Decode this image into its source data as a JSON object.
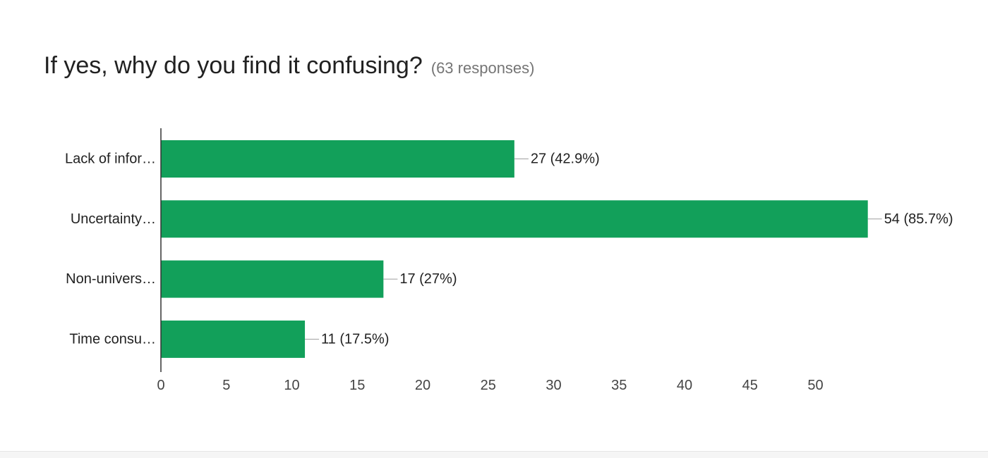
{
  "header": {
    "title": "If yes, why do you find it confusing?",
    "subtitle": "(63 responses)"
  },
  "colors": {
    "bar": "#12a05a",
    "text": "#212121",
    "muted": "#757575",
    "axis": "#333333",
    "leader": "#9e9e9e"
  },
  "chart_data": {
    "type": "bar",
    "orientation": "horizontal",
    "title": "If yes, why do you find it confusing?",
    "subtitle": "(63 responses)",
    "categories": [
      "Lack of infor…",
      "Uncertainty…",
      "Non-univers…",
      "Time consu…"
    ],
    "values": [
      27,
      54,
      17,
      11
    ],
    "data_labels": [
      "27 (42.9%)",
      "54 (85.7%)",
      "17 (27%)",
      "11 (17.5%)"
    ],
    "xlim": [
      0,
      54
    ],
    "xticks": [
      0,
      5,
      10,
      15,
      20,
      25,
      30,
      35,
      40,
      45,
      50
    ],
    "grid": false,
    "legend": "none"
  }
}
